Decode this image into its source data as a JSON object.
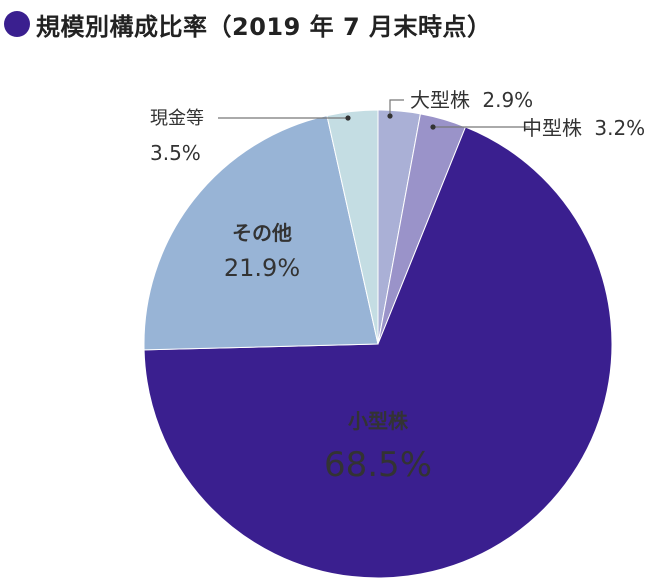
{
  "header": {
    "title": "規模別構成比率（2019 年 7 月末時点）"
  },
  "colors": {
    "accent": "#3a1f8f",
    "large": "#aab0d6",
    "mid": "#9a93c9",
    "small": "#3a1f8f",
    "other": "#98b4d6",
    "cash": "#c4dde3"
  },
  "chart_data": {
    "type": "pie",
    "title": "規模別構成比率（2019 年 7 月末時点）",
    "start": "12 o'clock",
    "direction": "clockwise",
    "slices": [
      {
        "label": "大型株",
        "value": 2.9,
        "display": "2.9%",
        "color": "#aab0d6"
      },
      {
        "label": "中型株",
        "value": 3.2,
        "display": "3.2%",
        "color": "#9a93c9"
      },
      {
        "label": "小型株",
        "value": 68.5,
        "display": "68.5%",
        "color": "#3a1f8f"
      },
      {
        "label": "その他",
        "value": 21.9,
        "display": "21.9%",
        "color": "#98b4d6"
      },
      {
        "label": "現金等",
        "value": 3.5,
        "display": "3.5%",
        "color": "#c4dde3"
      }
    ]
  }
}
